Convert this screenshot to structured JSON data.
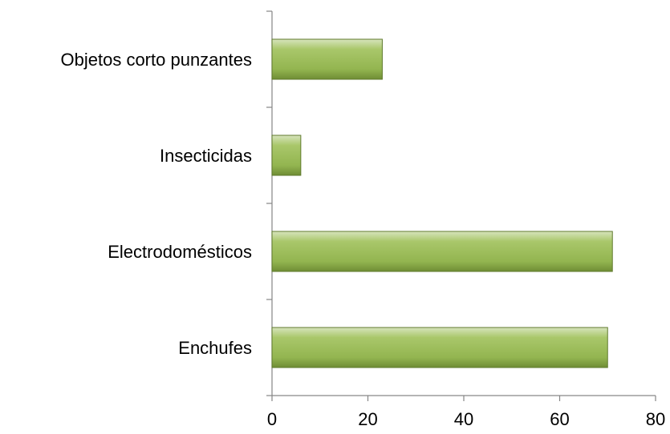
{
  "chart_data": {
    "type": "bar",
    "orientation": "horizontal",
    "categories": [
      "Objetos corto punzantes",
      "Insecticidas",
      "Electrodomésticos",
      "Enchufes"
    ],
    "values": [
      23,
      6,
      71,
      70
    ],
    "color": "#9bbb59",
    "xlim": [
      0,
      80
    ],
    "xticks": [
      0,
      20,
      40,
      60,
      80
    ],
    "grid": false
  }
}
